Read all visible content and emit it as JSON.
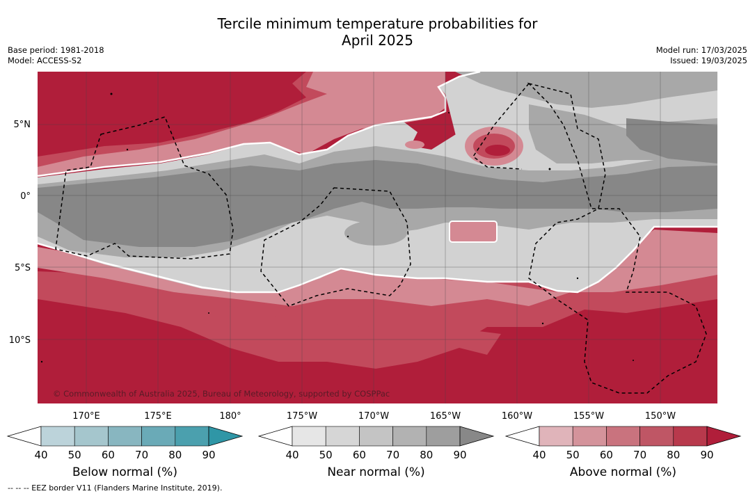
{
  "title_line1": "Tercile minimum temperature probabilities for",
  "title_line2": "April 2025",
  "meta_left": {
    "base_period": "Base period: 1981-2018",
    "model": "Model: ACCESS-S2"
  },
  "meta_right": {
    "model_run": "Model run: 17/03/2025",
    "issued": "Issued: 19/03/2025"
  },
  "map": {
    "lat_labels": [
      "5°N",
      "0°",
      "5°S",
      "10°S"
    ],
    "lon_labels": [
      "170°E",
      "175°E",
      "180°",
      "175°W",
      "170°W",
      "165°W",
      "160°W",
      "155°W",
      "150°W"
    ],
    "copyright": "© Commonwealth of Australia 2025, Bureau of Meteorology, supported by COSPPac",
    "colors": {
      "above_strong": "#b01e3a",
      "above_mid": "#c24a5c",
      "above_weak": "#d48993",
      "near_light": "#d2d2d2",
      "near_mid": "#a8a8a8",
      "near_strong": "#878787"
    }
  },
  "colorbars": [
    {
      "title": "Below normal (%)",
      "ticks": [
        "40",
        "50",
        "60",
        "70",
        "80",
        "90"
      ],
      "colors": [
        "#ffffff",
        "#bcd3da",
        "#a5c6cd",
        "#88b6c0",
        "#6aaab7",
        "#4ba0ae",
        "#2f96a6"
      ]
    },
    {
      "title": "Near normal (%)",
      "ticks": [
        "40",
        "50",
        "60",
        "70",
        "80",
        "90"
      ],
      "colors": [
        "#ffffff",
        "#e6e6e6",
        "#d6d6d6",
        "#c4c4c4",
        "#b2b2b2",
        "#9e9e9e",
        "#888888"
      ]
    },
    {
      "title": "Above normal (%)",
      "ticks": [
        "40",
        "50",
        "60",
        "70",
        "80",
        "90"
      ],
      "colors": [
        "#ffffff",
        "#e0b4ba",
        "#d4939b",
        "#c9737e",
        "#bf5665",
        "#b8394c",
        "#b01e3a"
      ]
    }
  ],
  "footnote": "--  --  -- EEZ border V11 (Flanders Marine Institute, 2019)."
}
